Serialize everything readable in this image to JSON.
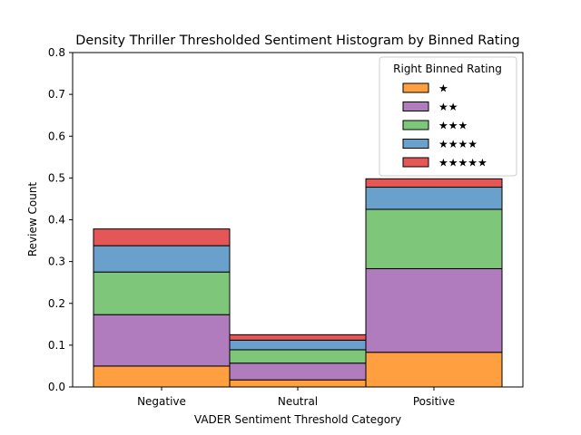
{
  "chart_data": {
    "type": "bar",
    "stacked": true,
    "title": "Density Thriller Thresholded Sentiment Histogram by Binned Rating",
    "xlabel": "VADER Sentiment Threshold Category",
    "ylabel": "Review Count",
    "categories": [
      "Negative",
      "Neutral",
      "Positive"
    ],
    "ylim": [
      0,
      0.8
    ],
    "yticks": [
      "0.0",
      "0.1",
      "0.2",
      "0.3",
      "0.4",
      "0.5",
      "0.6",
      "0.7",
      "0.8"
    ],
    "grid": false,
    "legend": {
      "title": "Right Binned Rating",
      "position": "top-right"
    },
    "series": [
      {
        "name": "★",
        "color": "#ff9f3f",
        "values": [
          0.05,
          0.017,
          0.083
        ]
      },
      {
        "name": "★★",
        "color": "#b07cbd",
        "values": [
          0.123,
          0.04,
          0.2
        ]
      },
      {
        "name": "★★★",
        "color": "#7ec67a",
        "values": [
          0.102,
          0.032,
          0.142
        ]
      },
      {
        "name": "★★★★",
        "color": "#6aa0cc",
        "values": [
          0.063,
          0.023,
          0.053
        ]
      },
      {
        "name": "★★★★★",
        "color": "#e45756",
        "values": [
          0.04,
          0.013,
          0.02
        ]
      }
    ]
  }
}
